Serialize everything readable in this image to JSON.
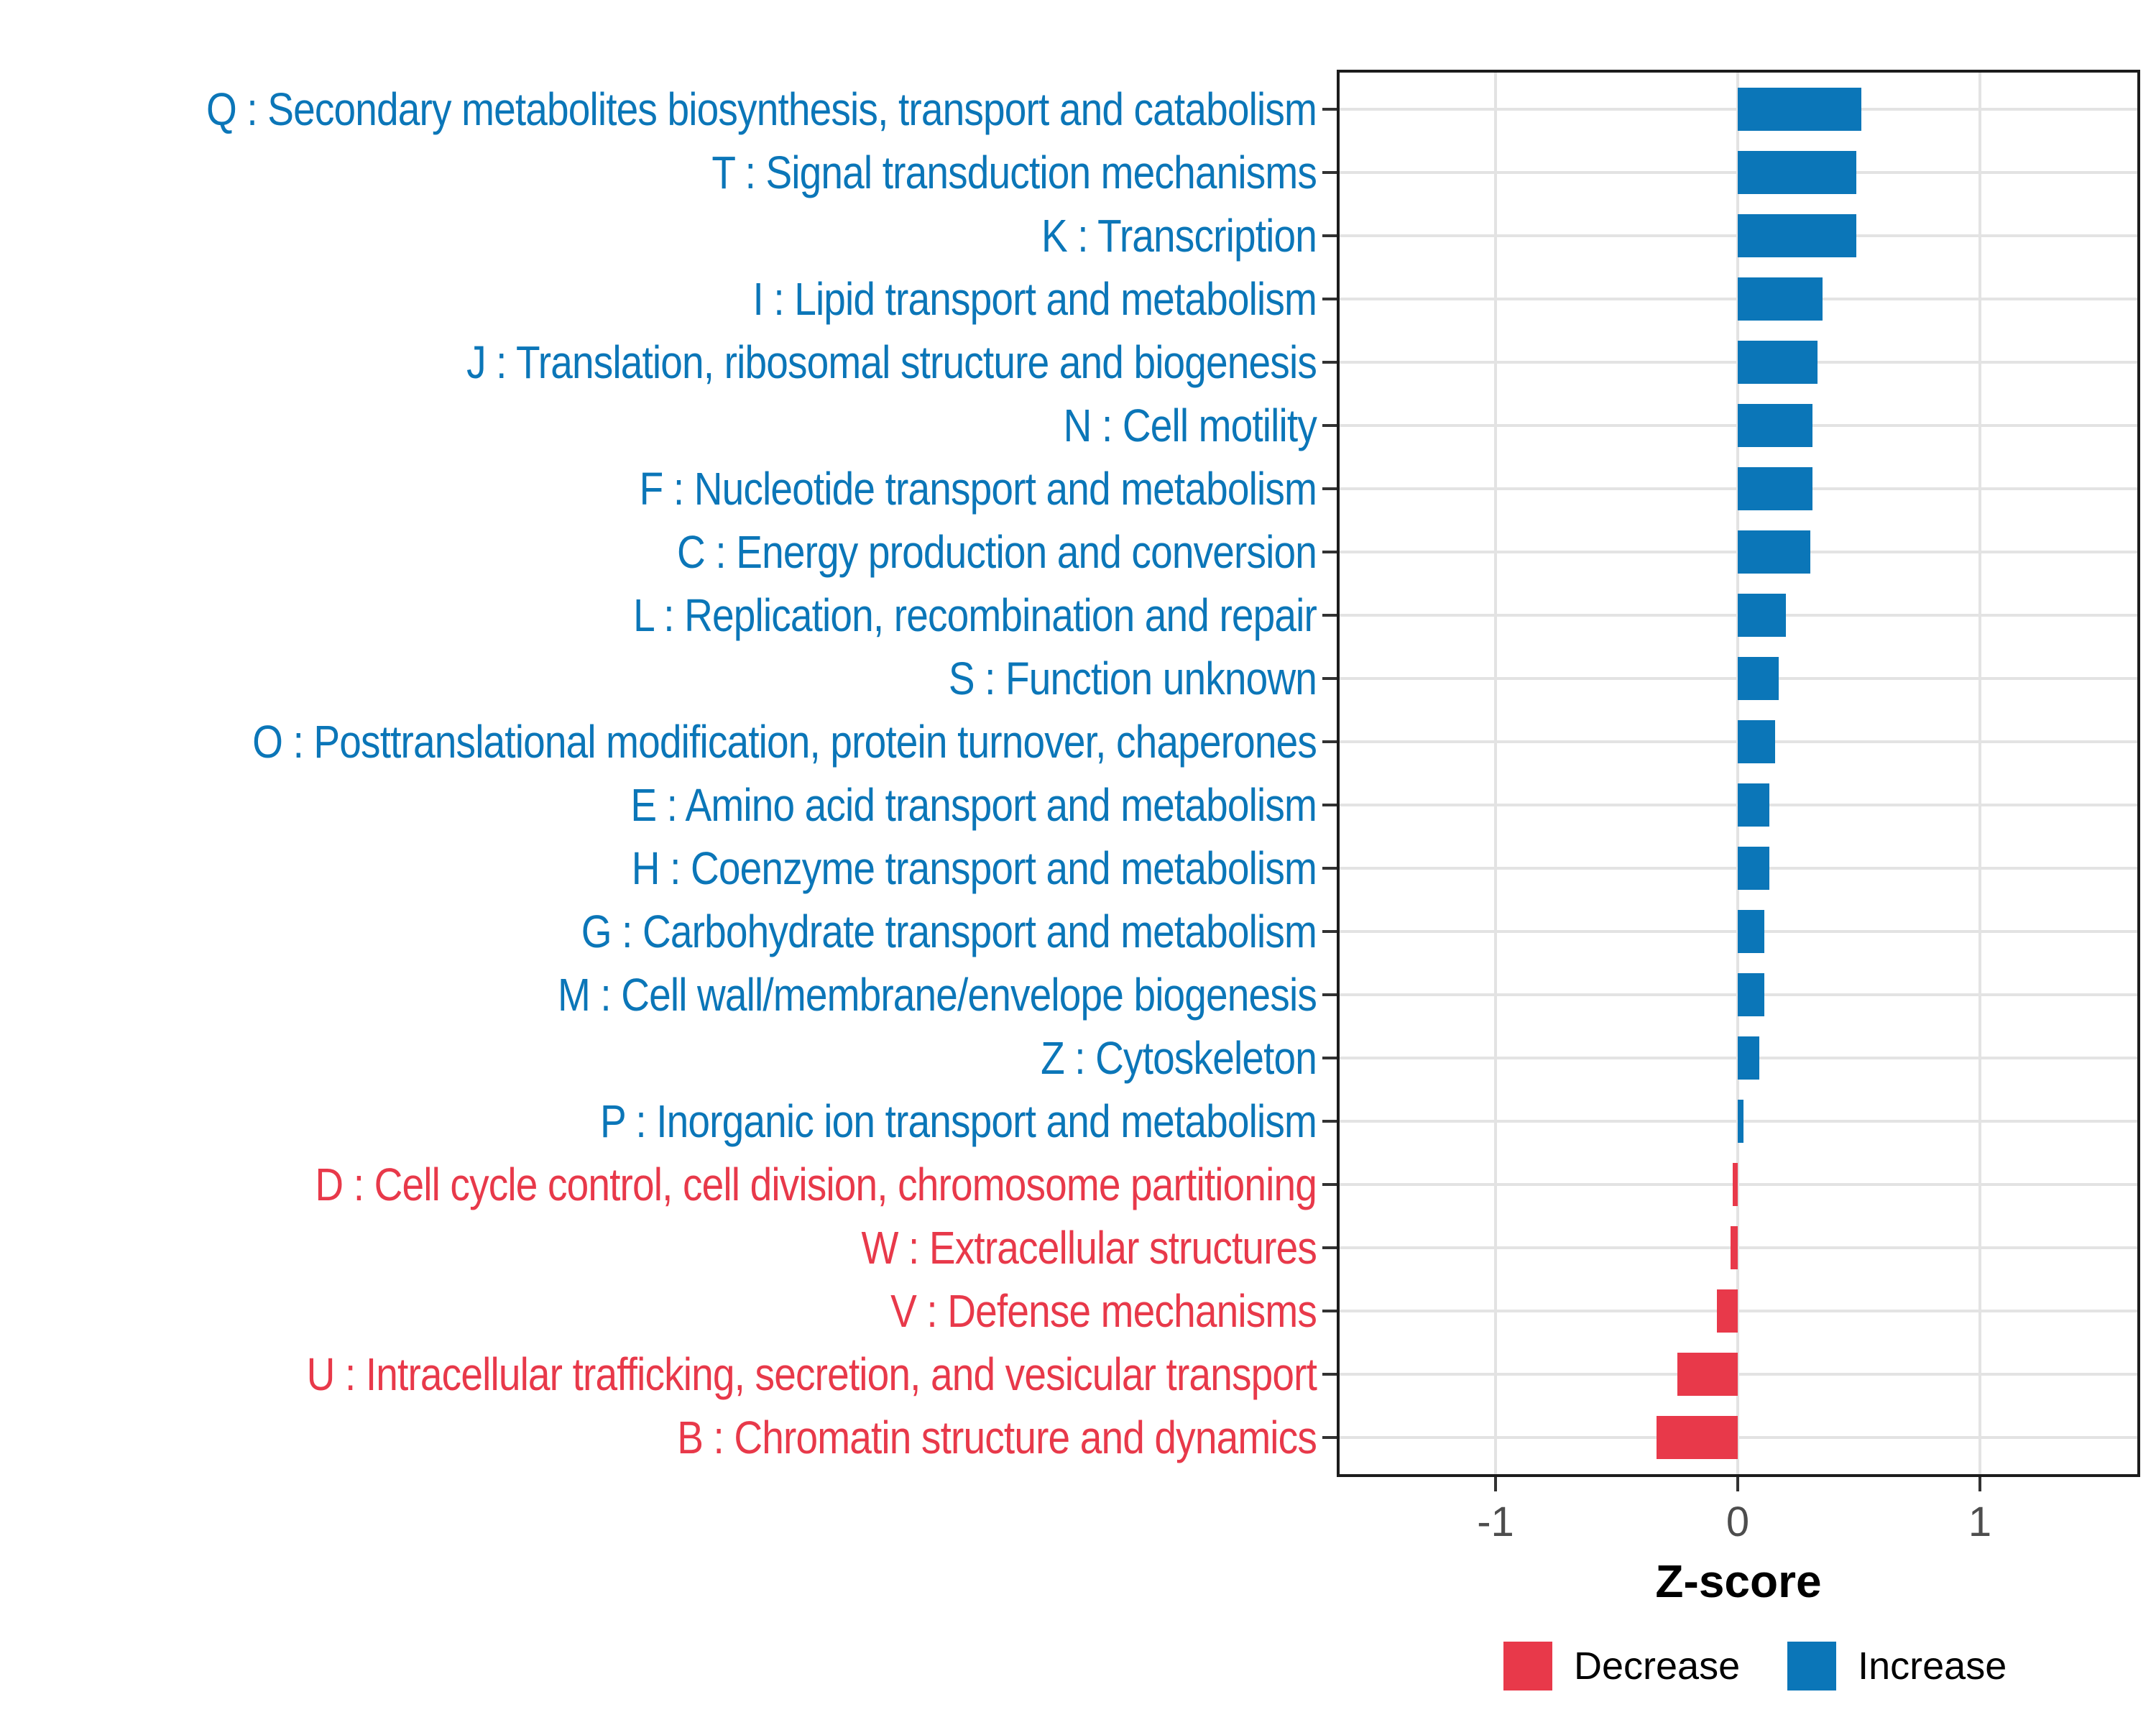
{
  "chart_data": {
    "type": "bar",
    "orientation": "horizontal",
    "xlabel": "Z-score",
    "x_ticks": [
      -1,
      0,
      1
    ],
    "x_tick_strings": [
      "-1",
      "0",
      "1"
    ],
    "xlim": [
      -1.65,
      1.65
    ],
    "grid": "major-only",
    "legend_position": "bottom-right",
    "legend": [
      {
        "label": "Decrease",
        "color": "#e8394a"
      },
      {
        "label": "Increase",
        "color": "#0b76b8"
      }
    ],
    "categories": [
      {
        "code": "Q",
        "label": "Q : Secondary metabolites biosynthesis, transport and catabolism",
        "value": 0.51,
        "direction": "Increase"
      },
      {
        "code": "T",
        "label": "T : Signal transduction mechanisms",
        "value": 0.49,
        "direction": "Increase"
      },
      {
        "code": "K",
        "label": "K : Transcription",
        "value": 0.49,
        "direction": "Increase"
      },
      {
        "code": "I",
        "label": "I : Lipid transport and metabolism",
        "value": 0.35,
        "direction": "Increase"
      },
      {
        "code": "J",
        "label": "J : Translation, ribosomal structure and biogenesis",
        "value": 0.33,
        "direction": "Increase"
      },
      {
        "code": "N",
        "label": "N : Cell motility",
        "value": 0.31,
        "direction": "Increase"
      },
      {
        "code": "F",
        "label": "F : Nucleotide transport and metabolism",
        "value": 0.31,
        "direction": "Increase"
      },
      {
        "code": "C",
        "label": "C : Energy production and conversion",
        "value": 0.3,
        "direction": "Increase"
      },
      {
        "code": "L",
        "label": "L : Replication, recombination and repair",
        "value": 0.2,
        "direction": "Increase"
      },
      {
        "code": "S",
        "label": "S : Function unknown",
        "value": 0.17,
        "direction": "Increase"
      },
      {
        "code": "O",
        "label": "O : Posttranslational modification, protein turnover, chaperones",
        "value": 0.155,
        "direction": "Increase"
      },
      {
        "code": "E",
        "label": "E : Amino acid transport and metabolism",
        "value": 0.13,
        "direction": "Increase"
      },
      {
        "code": "H",
        "label": "H : Coenzyme transport and metabolism",
        "value": 0.13,
        "direction": "Increase"
      },
      {
        "code": "G",
        "label": "G : Carbohydrate transport and metabolism",
        "value": 0.11,
        "direction": "Increase"
      },
      {
        "code": "M",
        "label": "M : Cell wall/membrane/envelope biogenesis",
        "value": 0.11,
        "direction": "Increase"
      },
      {
        "code": "Z",
        "label": "Z : Cytoskeleton",
        "value": 0.09,
        "direction": "Increase"
      },
      {
        "code": "P",
        "label": "P : Inorganic ion transport and metabolism",
        "value": 0.025,
        "direction": "Increase"
      },
      {
        "code": "D",
        "label": "D : Cell cycle control, cell division, chromosome partitioning",
        "value": -0.02,
        "direction": "Decrease"
      },
      {
        "code": "W",
        "label": "W : Extracellular structures",
        "value": -0.03,
        "direction": "Decrease"
      },
      {
        "code": "V",
        "label": "V : Defense mechanisms",
        "value": -0.085,
        "direction": "Decrease"
      },
      {
        "code": "U",
        "label": "U : Intracellular trafficking, secretion, and vesicular transport",
        "value": -0.25,
        "direction": "Decrease"
      },
      {
        "code": "B",
        "label": "B : Chromatin structure and dynamics",
        "value": -0.335,
        "direction": "Decrease"
      }
    ]
  },
  "colors": {
    "increase": "#0b76b8",
    "decrease": "#e8394a",
    "grid": "#e3e3e3",
    "axis_text": "#4d4d4d",
    "panel_border": "#1c1c1c",
    "tick": "#333333"
  }
}
